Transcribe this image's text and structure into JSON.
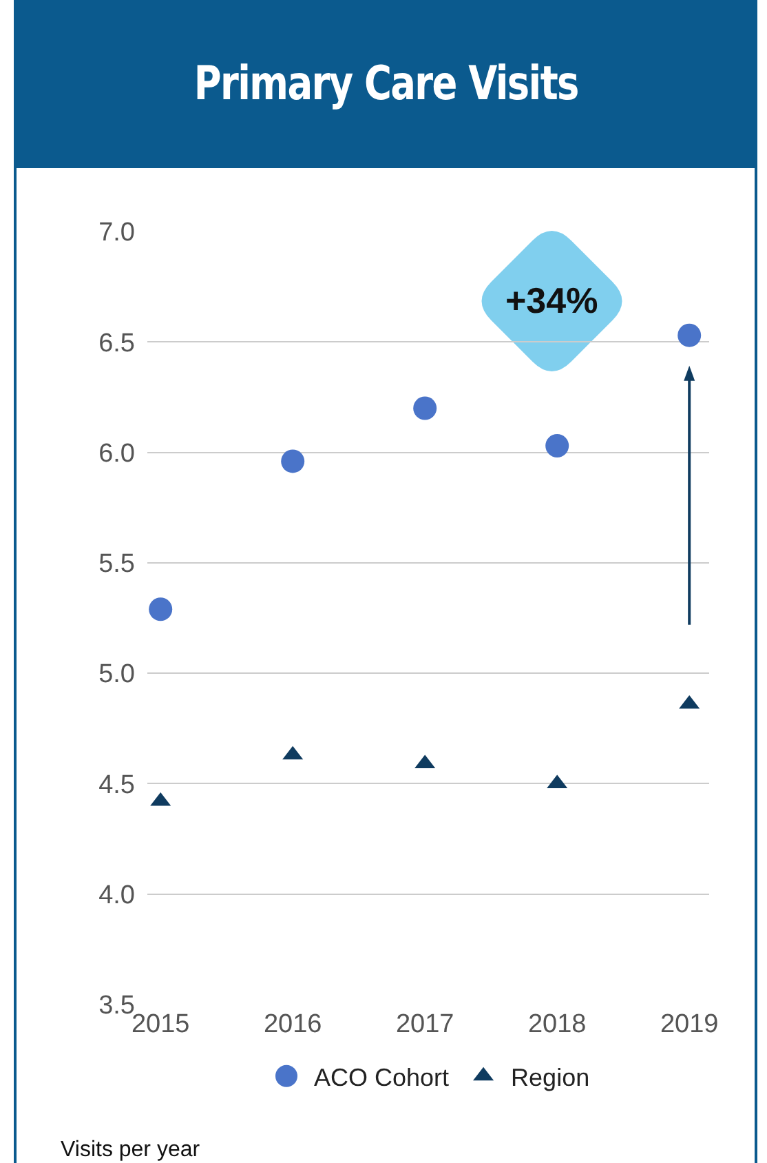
{
  "chart_data": {
    "type": "scatter",
    "title": "Primary Care Visits",
    "ylabel": "Visits per year",
    "x": [
      2015,
      2016,
      2017,
      2018,
      2019
    ],
    "series": [
      {
        "name": "ACO Cohort",
        "color": "#4a74c9",
        "marker": "circle",
        "values": [
          5.29,
          5.96,
          6.2,
          6.03,
          6.53
        ]
      },
      {
        "name": "Region",
        "color": "#0f3b5f",
        "marker": "triangle",
        "values": [
          4.42,
          4.63,
          4.59,
          4.5,
          4.86
        ]
      }
    ],
    "xlim": [
      2014.9,
      2019.15
    ],
    "xticks": [
      2015,
      2016,
      2017,
      2018,
      2019
    ],
    "ylim": [
      3.5,
      7.0
    ],
    "yticks": [
      3.5,
      {
        "value": 4,
        "label": "4.0"
      },
      4.5,
      {
        "value": 5,
        "label": "5.0"
      },
      5.5,
      {
        "value": 6,
        "label": "6.0"
      },
      6.5,
      {
        "value": 7,
        "label": "7.0"
      }
    ],
    "grid": "y",
    "legend": "bottom",
    "annotations": [
      "+34%"
    ]
  }
}
